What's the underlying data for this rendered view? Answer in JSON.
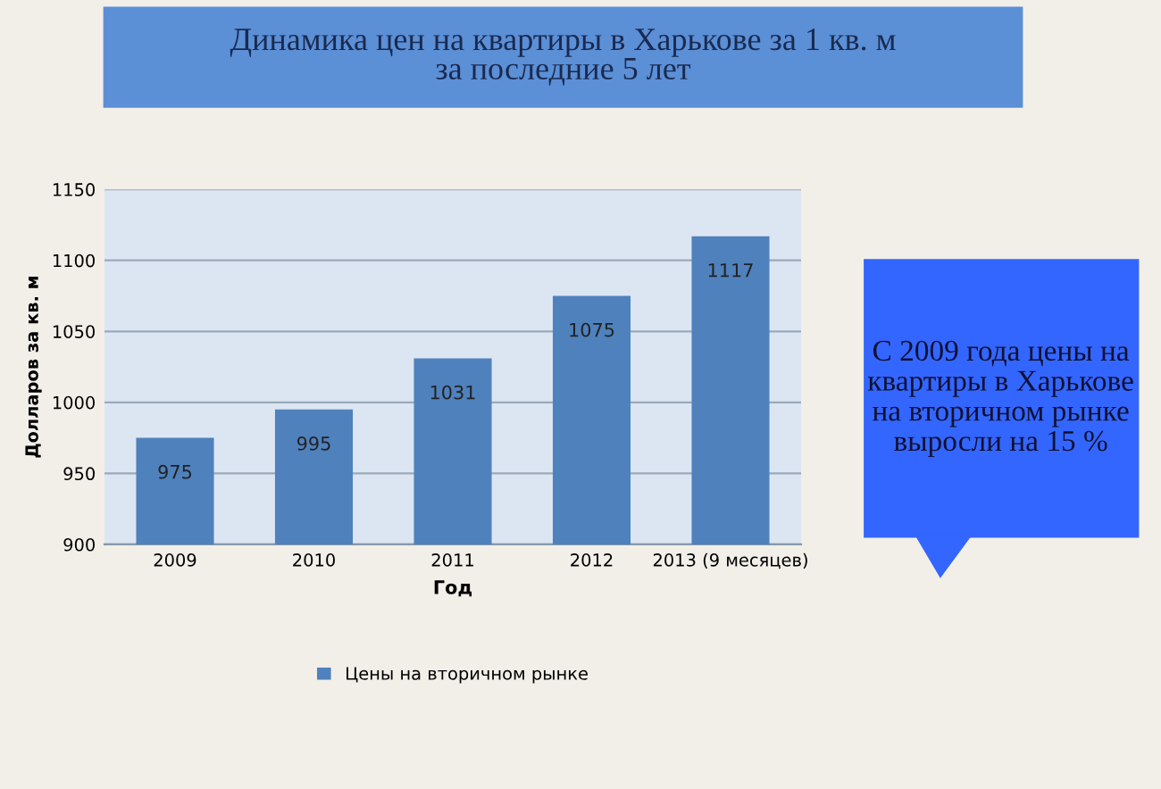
{
  "chart_data": {
    "type": "bar",
    "title": "Динамика цен на квартиры в Харькове за 1 кв. м\nза последние 5 лет",
    "xlabel": "Год",
    "ylabel": "Долларов за кв. м",
    "categories": [
      "2009",
      "2010",
      "2011",
      "2012",
      "2013 (9 месяцев)"
    ],
    "series": [
      {
        "name": "Цены на вторичном рынке",
        "color": "#4f81bd",
        "values": [
          975,
          995,
          1031,
          1075,
          1117
        ]
      }
    ],
    "ylim": [
      900,
      1150
    ],
    "yticks": [
      900,
      950,
      1000,
      1050,
      1100,
      1150
    ],
    "grid": "y",
    "legend": "bottom",
    "data_labels": true,
    "annotations": [
      "С 2009 года цены на\nквартиры в Харькове\nна вторичном рынке\nвыросли на 15 %"
    ]
  }
}
